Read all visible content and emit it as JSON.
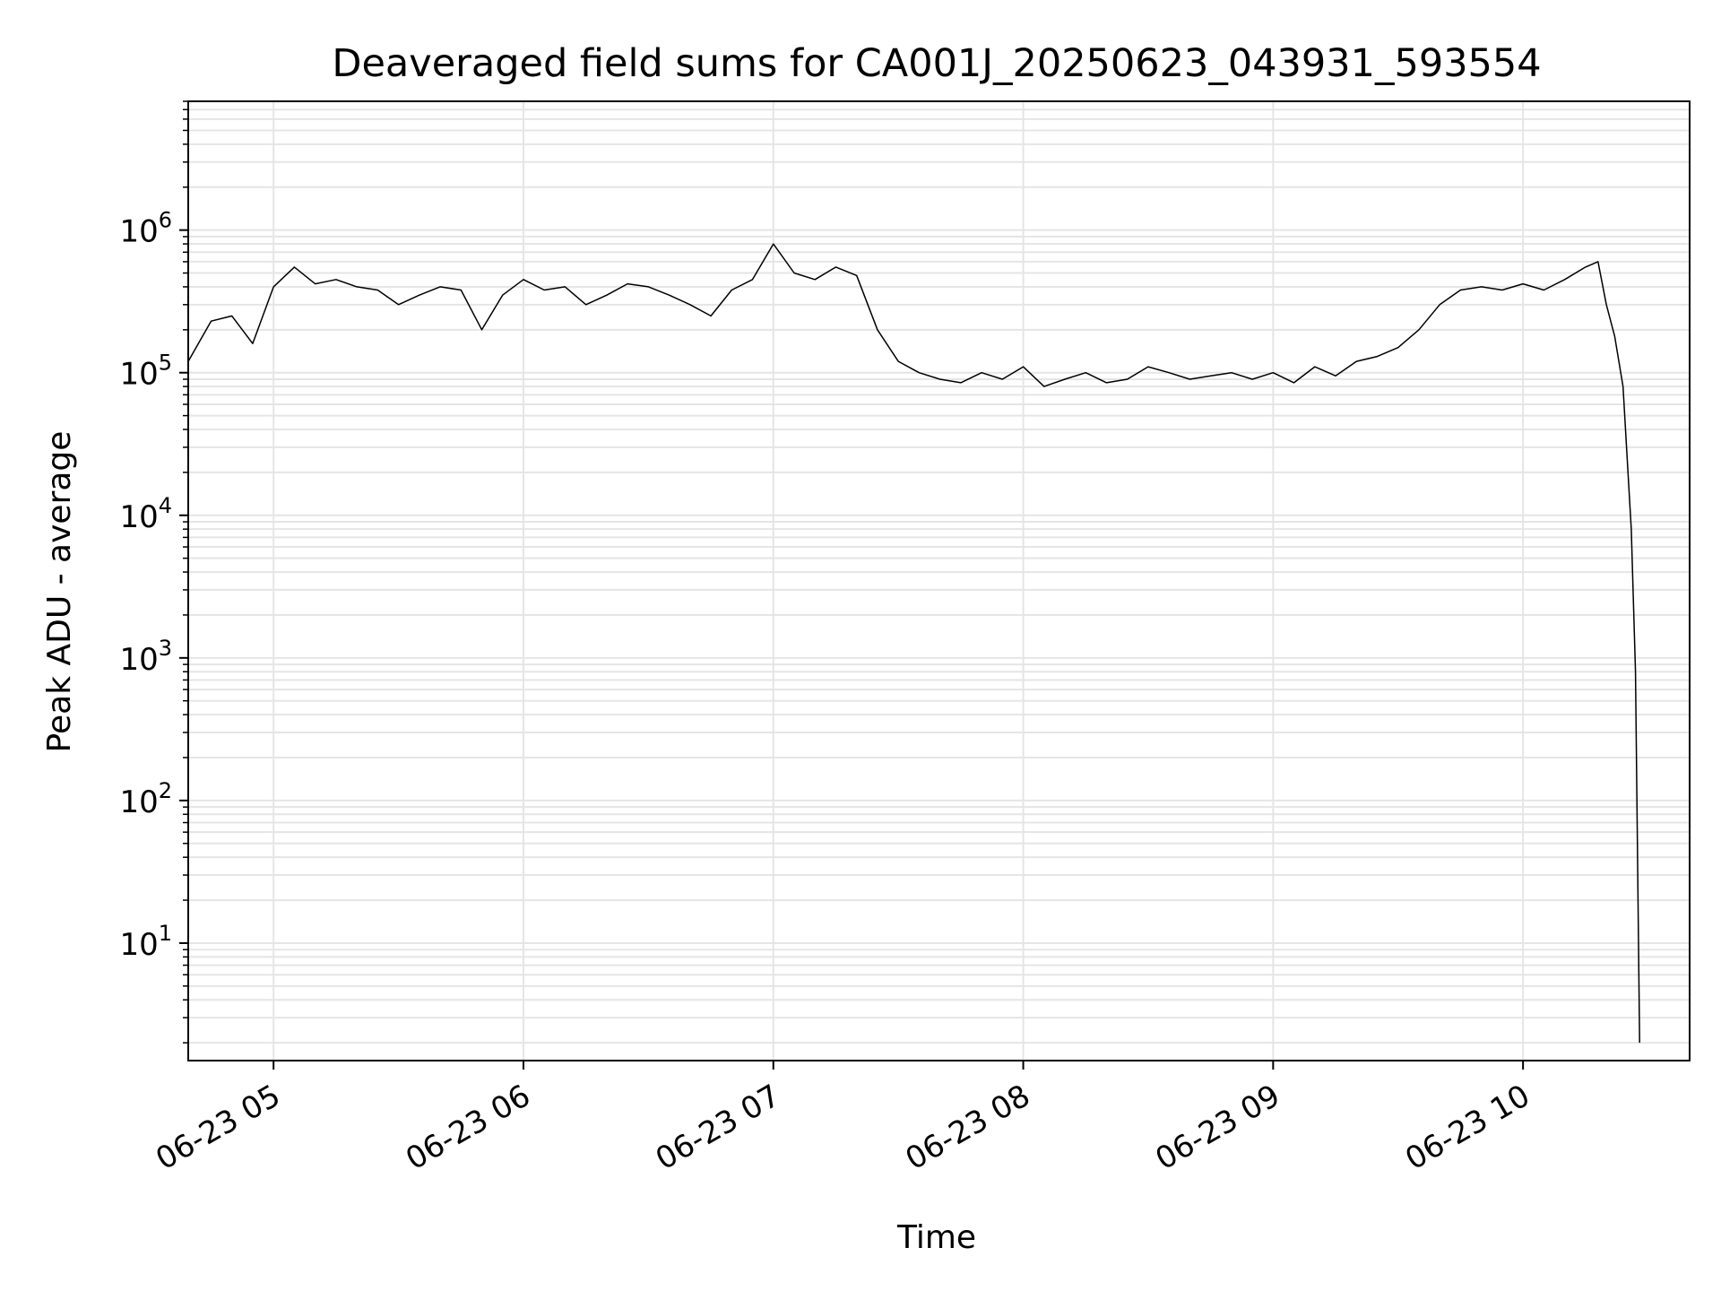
{
  "chart_data": {
    "type": "line",
    "title": "Deaveraged field sums for CA001J_20250623_043931_593554",
    "xlabel": "Time",
    "ylabel": "Peak ADU - average",
    "y_scale": "log",
    "grid": true,
    "legend": "none",
    "line_color": "#000000",
    "grid_color": "#e5e5e5",
    "xlim": [
      "2025-06-23 04:39:31",
      "2025-06-23 10:40:00"
    ],
    "ylim": [
      1.5,
      8000000
    ],
    "x_ticks": [
      {
        "t": "2025-06-23 05:00",
        "label": "06-23 05"
      },
      {
        "t": "2025-06-23 06:00",
        "label": "06-23 06"
      },
      {
        "t": "2025-06-23 07:00",
        "label": "06-23 07"
      },
      {
        "t": "2025-06-23 08:00",
        "label": "06-23 08"
      },
      {
        "t": "2025-06-23 09:00",
        "label": "06-23 09"
      },
      {
        "t": "2025-06-23 10:00",
        "label": "06-23 10"
      }
    ],
    "y_ticks": [
      {
        "value": 10,
        "base": "10",
        "exp": "1"
      },
      {
        "value": 100,
        "base": "10",
        "exp": "2"
      },
      {
        "value": 1000,
        "base": "10",
        "exp": "3"
      },
      {
        "value": 10000,
        "base": "10",
        "exp": "4"
      },
      {
        "value": 100000,
        "base": "10",
        "exp": "5"
      },
      {
        "value": 1000000,
        "base": "10",
        "exp": "6"
      }
    ],
    "series": [
      {
        "x": [
          "2025-06-23 04:39:31",
          "2025-06-23 04:45",
          "2025-06-23 04:50",
          "2025-06-23 04:55",
          "2025-06-23 05:00",
          "2025-06-23 05:05",
          "2025-06-23 05:10",
          "2025-06-23 05:15",
          "2025-06-23 05:20",
          "2025-06-23 05:25",
          "2025-06-23 05:30",
          "2025-06-23 05:35",
          "2025-06-23 05:40",
          "2025-06-23 05:45",
          "2025-06-23 05:50",
          "2025-06-23 05:55",
          "2025-06-23 06:00",
          "2025-06-23 06:05",
          "2025-06-23 06:10",
          "2025-06-23 06:15",
          "2025-06-23 06:20",
          "2025-06-23 06:25",
          "2025-06-23 06:30",
          "2025-06-23 06:35",
          "2025-06-23 06:40",
          "2025-06-23 06:45",
          "2025-06-23 06:50",
          "2025-06-23 06:55",
          "2025-06-23 07:00",
          "2025-06-23 07:05",
          "2025-06-23 07:10",
          "2025-06-23 07:15",
          "2025-06-23 07:20",
          "2025-06-23 07:25",
          "2025-06-23 07:30",
          "2025-06-23 07:35",
          "2025-06-23 07:40",
          "2025-06-23 07:45",
          "2025-06-23 07:50",
          "2025-06-23 07:55",
          "2025-06-23 08:00",
          "2025-06-23 08:05",
          "2025-06-23 08:10",
          "2025-06-23 08:15",
          "2025-06-23 08:20",
          "2025-06-23 08:25",
          "2025-06-23 08:30",
          "2025-06-23 08:35",
          "2025-06-23 08:40",
          "2025-06-23 08:45",
          "2025-06-23 08:50",
          "2025-06-23 08:55",
          "2025-06-23 09:00",
          "2025-06-23 09:05",
          "2025-06-23 09:10",
          "2025-06-23 09:15",
          "2025-06-23 09:20",
          "2025-06-23 09:25",
          "2025-06-23 09:30",
          "2025-06-23 09:35",
          "2025-06-23 09:40",
          "2025-06-23 09:45",
          "2025-06-23 09:50",
          "2025-06-23 09:55",
          "2025-06-23 10:00",
          "2025-06-23 10:05",
          "2025-06-23 10:10",
          "2025-06-23 10:15",
          "2025-06-23 10:18",
          "2025-06-23 10:20",
          "2025-06-23 10:22",
          "2025-06-23 10:24",
          "2025-06-23 10:26",
          "2025-06-23 10:27",
          "2025-06-23 10:28"
        ],
        "y": [
          120000,
          230000,
          250000,
          160000,
          400000,
          550000,
          420000,
          450000,
          400000,
          380000,
          300000,
          350000,
          400000,
          380000,
          200000,
          350000,
          450000,
          380000,
          400000,
          300000,
          350000,
          420000,
          400000,
          350000,
          300000,
          250000,
          380000,
          450000,
          800000,
          500000,
          450000,
          550000,
          480000,
          200000,
          120000,
          100000,
          90000,
          85000,
          100000,
          90000,
          110000,
          80000,
          90000,
          100000,
          85000,
          90000,
          110000,
          100000,
          90000,
          95000,
          100000,
          90000,
          100000,
          85000,
          110000,
          95000,
          120000,
          130000,
          150000,
          200000,
          300000,
          380000,
          400000,
          380000,
          420000,
          380000,
          450000,
          550000,
          600000,
          300000,
          180000,
          80000,
          8000,
          800,
          2
        ]
      }
    ]
  }
}
